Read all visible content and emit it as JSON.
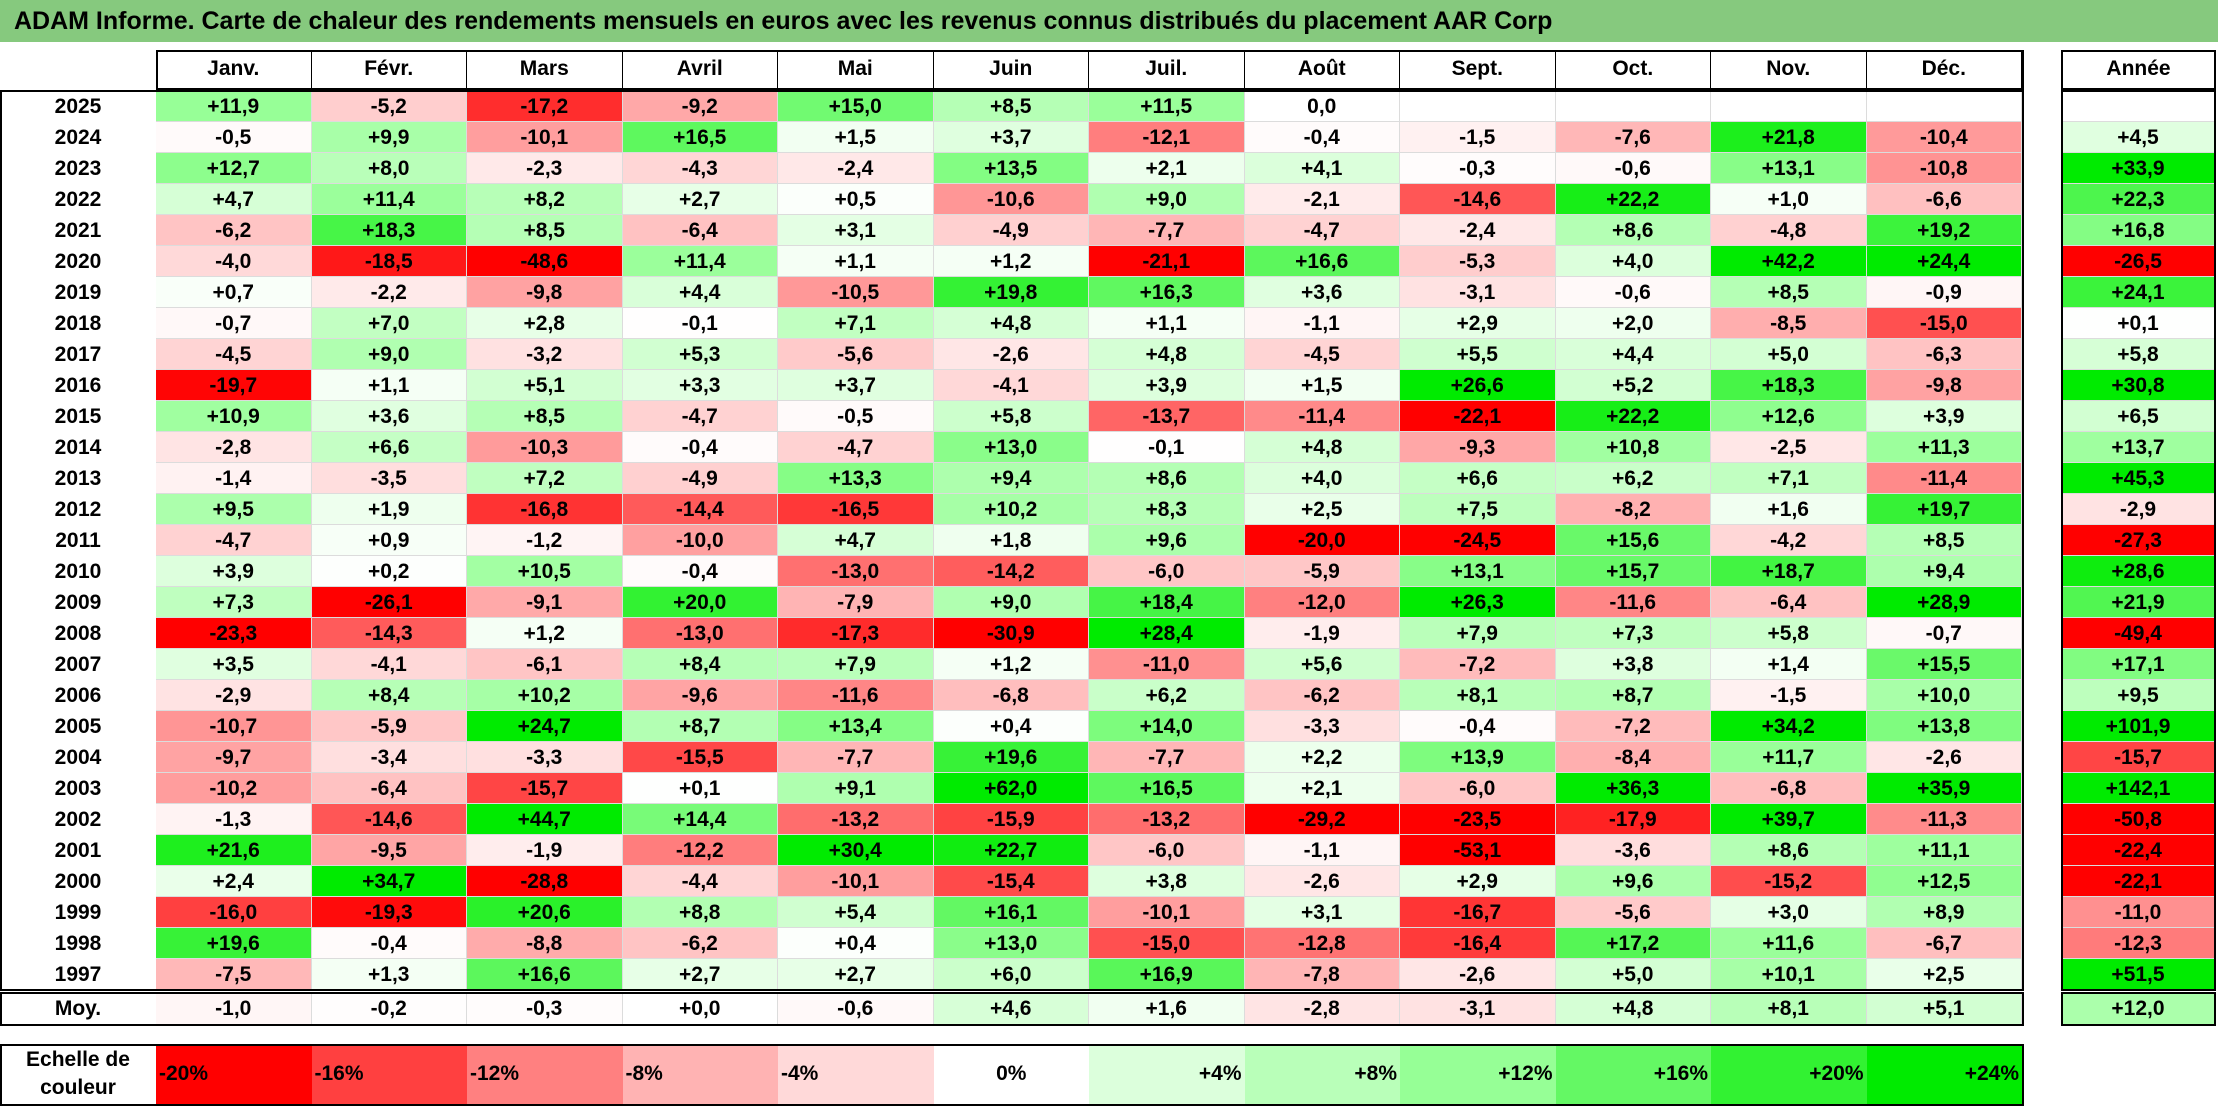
{
  "title": "ADAM Informe. Carte de chaleur des rendements mensuels en euros avec les revenus connus distribués du placement AAR Corp",
  "chart_data": {
    "type": "heatmap",
    "title": "ADAM Informe. Carte de chaleur des rendements mensuels en euros avec les revenus connus distribués du placement AAR Corp",
    "columns": [
      "Janv.",
      "Févr.",
      "Mars",
      "Avril",
      "Mai",
      "Juin",
      "Juil.",
      "Août",
      "Sept.",
      "Oct.",
      "Nov.",
      "Déc."
    ],
    "year_column_label": "Année",
    "rows": [
      {
        "year": "2025",
        "months": [
          "+11,9",
          "-5,2",
          "-17,2",
          "-9,2",
          "+15,0",
          "+8,5",
          "+11,5",
          "0,0",
          "",
          "",
          "",
          ""
        ],
        "annual": ""
      },
      {
        "year": "2024",
        "months": [
          "-0,5",
          "+9,9",
          "-10,1",
          "+16,5",
          "+1,5",
          "+3,7",
          "-12,1",
          "-0,4",
          "-1,5",
          "-7,6",
          "+21,8",
          "-10,4"
        ],
        "annual": "+4,5"
      },
      {
        "year": "2023",
        "months": [
          "+12,7",
          "+8,0",
          "-2,3",
          "-4,3",
          "-2,4",
          "+13,5",
          "+2,1",
          "+4,1",
          "-0,3",
          "-0,6",
          "+13,1",
          "-10,8"
        ],
        "annual": "+33,9"
      },
      {
        "year": "2022",
        "months": [
          "+4,7",
          "+11,4",
          "+8,2",
          "+2,7",
          "+0,5",
          "-10,6",
          "+9,0",
          "-2,1",
          "-14,6",
          "+22,2",
          "+1,0",
          "-6,6"
        ],
        "annual": "+22,3"
      },
      {
        "year": "2021",
        "months": [
          "-6,2",
          "+18,3",
          "+8,5",
          "-6,4",
          "+3,1",
          "-4,9",
          "-7,7",
          "-4,7",
          "-2,4",
          "+8,6",
          "-4,8",
          "+19,2"
        ],
        "annual": "+16,8"
      },
      {
        "year": "2020",
        "months": [
          "-4,0",
          "-18,5",
          "-48,6",
          "+11,4",
          "+1,1",
          "+1,2",
          "-21,1",
          "+16,6",
          "-5,3",
          "+4,0",
          "+42,2",
          "+24,4"
        ],
        "annual": "-26,5"
      },
      {
        "year": "2019",
        "months": [
          "+0,7",
          "-2,2",
          "-9,8",
          "+4,4",
          "-10,5",
          "+19,8",
          "+16,3",
          "+3,6",
          "-3,1",
          "-0,6",
          "+8,5",
          "-0,9"
        ],
        "annual": "+24,1"
      },
      {
        "year": "2018",
        "months": [
          "-0,7",
          "+7,0",
          "+2,8",
          "-0,1",
          "+7,1",
          "+4,8",
          "+1,1",
          "-1,1",
          "+2,9",
          "+2,0",
          "-8,5",
          "-15,0"
        ],
        "annual": "+0,1"
      },
      {
        "year": "2017",
        "months": [
          "-4,5",
          "+9,0",
          "-3,2",
          "+5,3",
          "-5,6",
          "-2,6",
          "+4,8",
          "-4,5",
          "+5,5",
          "+4,4",
          "+5,0",
          "-6,3"
        ],
        "annual": "+5,8"
      },
      {
        "year": "2016",
        "months": [
          "-19,7",
          "+1,1",
          "+5,1",
          "+3,3",
          "+3,7",
          "-4,1",
          "+3,9",
          "+1,5",
          "+26,6",
          "+5,2",
          "+18,3",
          "-9,8"
        ],
        "annual": "+30,8"
      },
      {
        "year": "2015",
        "months": [
          "+10,9",
          "+3,6",
          "+8,5",
          "-4,7",
          "-0,5",
          "+5,8",
          "-13,7",
          "-11,4",
          "-22,1",
          "+22,2",
          "+12,6",
          "+3,9"
        ],
        "annual": "+6,5"
      },
      {
        "year": "2014",
        "months": [
          "-2,8",
          "+6,6",
          "-10,3",
          "-0,4",
          "-4,7",
          "+13,0",
          "-0,1",
          "+4,8",
          "-9,3",
          "+10,8",
          "-2,5",
          "+11,3"
        ],
        "annual": "+13,7"
      },
      {
        "year": "2013",
        "months": [
          "-1,4",
          "-3,5",
          "+7,2",
          "-4,9",
          "+13,3",
          "+9,4",
          "+8,6",
          "+4,0",
          "+6,6",
          "+6,2",
          "+7,1",
          "-11,4"
        ],
        "annual": "+45,3"
      },
      {
        "year": "2012",
        "months": [
          "+9,5",
          "+1,9",
          "-16,8",
          "-14,4",
          "-16,5",
          "+10,2",
          "+8,3",
          "+2,5",
          "+7,5",
          "-8,2",
          "+1,6",
          "+19,7"
        ],
        "annual": "-2,9"
      },
      {
        "year": "2011",
        "months": [
          "-4,7",
          "+0,9",
          "-1,2",
          "-10,0",
          "+4,7",
          "+1,8",
          "+9,6",
          "-20,0",
          "-24,5",
          "+15,6",
          "-4,2",
          "+8,5"
        ],
        "annual": "-27,3"
      },
      {
        "year": "2010",
        "months": [
          "+3,9",
          "+0,2",
          "+10,5",
          "-0,4",
          "-13,0",
          "-14,2",
          "-6,0",
          "-5,9",
          "+13,1",
          "+15,7",
          "+18,7",
          "+9,4"
        ],
        "annual": "+28,6"
      },
      {
        "year": "2009",
        "months": [
          "+7,3",
          "-26,1",
          "-9,1",
          "+20,0",
          "-7,9",
          "+9,0",
          "+18,4",
          "-12,0",
          "+26,3",
          "-11,6",
          "-6,4",
          "+28,9"
        ],
        "annual": "+21,9"
      },
      {
        "year": "2008",
        "months": [
          "-23,3",
          "-14,3",
          "+1,2",
          "-13,0",
          "-17,3",
          "-30,9",
          "+28,4",
          "-1,9",
          "+7,9",
          "+7,3",
          "+5,8",
          "-0,7"
        ],
        "annual": "-49,4"
      },
      {
        "year": "2007",
        "months": [
          "+3,5",
          "-4,1",
          "-6,1",
          "+8,4",
          "+7,9",
          "+1,2",
          "-11,0",
          "+5,6",
          "-7,2",
          "+3,8",
          "+1,4",
          "+15,5"
        ],
        "annual": "+17,1"
      },
      {
        "year": "2006",
        "months": [
          "-2,9",
          "+8,4",
          "+10,2",
          "-9,6",
          "-11,6",
          "-6,8",
          "+6,2",
          "-6,2",
          "+8,1",
          "+8,7",
          "-1,5",
          "+10,0"
        ],
        "annual": "+9,5"
      },
      {
        "year": "2005",
        "months": [
          "-10,7",
          "-5,9",
          "+24,7",
          "+8,7",
          "+13,4",
          "+0,4",
          "+14,0",
          "-3,3",
          "-0,4",
          "-7,2",
          "+34,2",
          "+13,8"
        ],
        "annual": "+101,9"
      },
      {
        "year": "2004",
        "months": [
          "-9,7",
          "-3,4",
          "-3,3",
          "-15,5",
          "-7,7",
          "+19,6",
          "-7,7",
          "+2,2",
          "+13,9",
          "-8,4",
          "+11,7",
          "-2,6"
        ],
        "annual": "-15,7"
      },
      {
        "year": "2003",
        "months": [
          "-10,2",
          "-6,4",
          "-15,7",
          "+0,1",
          "+9,1",
          "+62,0",
          "+16,5",
          "+2,1",
          "-6,0",
          "+36,3",
          "-6,8",
          "+35,9"
        ],
        "annual": "+142,1"
      },
      {
        "year": "2002",
        "months": [
          "-1,3",
          "-14,6",
          "+44,7",
          "+14,4",
          "-13,2",
          "-15,9",
          "-13,2",
          "-29,2",
          "-23,5",
          "-17,9",
          "+39,7",
          "-11,3"
        ],
        "annual": "-50,8"
      },
      {
        "year": "2001",
        "months": [
          "+21,6",
          "-9,5",
          "-1,9",
          "-12,2",
          "+30,4",
          "+22,7",
          "-6,0",
          "-1,1",
          "-53,1",
          "-3,6",
          "+8,6",
          "+11,1"
        ],
        "annual": "-22,4"
      },
      {
        "year": "2000",
        "months": [
          "+2,4",
          "+34,7",
          "-28,8",
          "-4,4",
          "-10,1",
          "-15,4",
          "+3,8",
          "-2,6",
          "+2,9",
          "+9,6",
          "-15,2",
          "+12,5"
        ],
        "annual": "-22,1"
      },
      {
        "year": "1999",
        "months": [
          "-16,0",
          "-19,3",
          "+20,6",
          "+8,8",
          "+5,4",
          "+16,1",
          "-10,1",
          "+3,1",
          "-16,7",
          "-5,6",
          "+3,0",
          "+8,9"
        ],
        "annual": "-11,0"
      },
      {
        "year": "1998",
        "months": [
          "+19,6",
          "-0,4",
          "-8,8",
          "-6,2",
          "+0,4",
          "+13,0",
          "-15,0",
          "-12,8",
          "-16,4",
          "+17,2",
          "+11,6",
          "-6,7"
        ],
        "annual": "-12,3"
      },
      {
        "year": "1997",
        "months": [
          "-7,5",
          "+1,3",
          "+16,6",
          "+2,7",
          "+2,7",
          "+6,0",
          "+16,9",
          "-7,8",
          "-2,6",
          "+5,0",
          "+10,1",
          "+2,5"
        ],
        "annual": "+51,5"
      }
    ],
    "average": {
      "label": "Moy.",
      "months": [
        "-1,0",
        "-0,2",
        "-0,3",
        "+0,0",
        "-0,6",
        "+4,6",
        "+1,6",
        "-2,8",
        "-3,1",
        "+4,8",
        "+8,1",
        "+5,1"
      ],
      "annual": "+12,0"
    },
    "scale": {
      "label": "Echelle de couleur",
      "stops": [
        "-20%",
        "-16%",
        "-12%",
        "-8%",
        "-4%",
        "0%",
        "+4%",
        "+8%",
        "+12%",
        "+16%",
        "+20%",
        "+24%"
      ],
      "values": [
        -20,
        -16,
        -12,
        -8,
        -4,
        0,
        4,
        8,
        12,
        16,
        20,
        24
      ]
    },
    "colors": {
      "negative_full": "#ff0000",
      "neutral": "#ffffff",
      "positive_full": "#00e600",
      "title_bar": "#86c97e"
    }
  }
}
